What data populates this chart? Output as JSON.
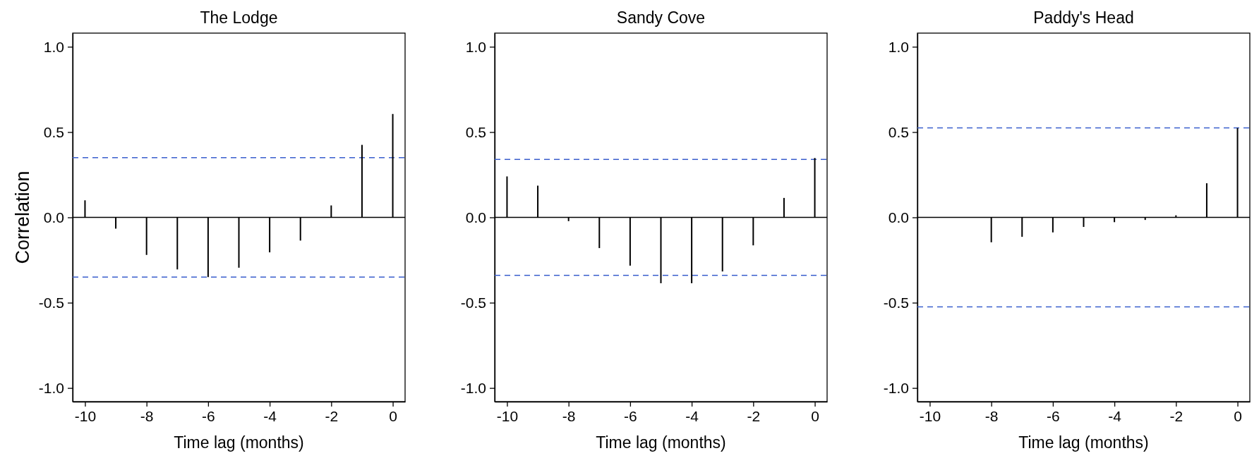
{
  "chart_data": [
    {
      "type": "bar",
      "title": "The Lodge",
      "xlabel": "Time lag (months)",
      "ylabel": "Correlation",
      "x": [
        -10,
        -9,
        -8,
        -7,
        -6,
        -5,
        -4,
        -3,
        -2,
        -1,
        0
      ],
      "series": [
        {
          "color": "#000000",
          "values": [
            0.1,
            -0.066,
            -0.22,
            -0.305,
            -0.35,
            -0.295,
            -0.205,
            -0.136,
            0.07,
            0.425,
            0.606
          ]
        }
      ],
      "xlim": [
        -10.4,
        0.4
      ],
      "xticks": [
        -10,
        -8,
        -6,
        -4,
        -2,
        0
      ],
      "ylim": [
        -1.08,
        1.08
      ],
      "yticks": [
        {
          "value": -1,
          "label": "-1.0"
        },
        {
          "value": -0.5,
          "label": "-0.5"
        },
        {
          "value": 0,
          "label": "0.0"
        },
        {
          "value": 0.5,
          "label": "0.5"
        },
        {
          "value": 1,
          "label": "1.0"
        }
      ],
      "ref_lines": [
        {
          "axis": "y",
          "value": 0,
          "color": "#000000",
          "line_style": "solid"
        },
        {
          "axis": "y",
          "value": 0.35,
          "color": "#3a5fcd",
          "line_style": "dashed"
        },
        {
          "axis": "y",
          "value": -0.35,
          "color": "#3a5fcd",
          "line_style": "dashed"
        }
      ]
    },
    {
      "type": "bar",
      "title": "Sandy Cove",
      "xlabel": "Time lag (months)",
      "x": [
        -10,
        -9,
        -8,
        -7,
        -6,
        -5,
        -4,
        -3,
        -2,
        -1,
        0
      ],
      "series": [
        {
          "color": "#000000",
          "values": [
            0.24,
            0.186,
            -0.022,
            -0.18,
            -0.283,
            -0.386,
            -0.386,
            -0.317,
            -0.164,
            0.114,
            0.348
          ]
        }
      ],
      "xlim": [
        -10.4,
        0.4
      ],
      "xticks": [
        -10,
        -8,
        -6,
        -4,
        -2,
        0
      ],
      "ylim": [
        -1.08,
        1.08
      ],
      "yticks": [
        {
          "value": -1,
          "label": "-1.0"
        },
        {
          "value": -0.5,
          "label": "-0.5"
        },
        {
          "value": 0,
          "label": "0.0"
        },
        {
          "value": 0.5,
          "label": "0.5"
        },
        {
          "value": 1,
          "label": "1.0"
        }
      ],
      "ref_lines": [
        {
          "axis": "y",
          "value": 0,
          "color": "#000000",
          "line_style": "solid"
        },
        {
          "axis": "y",
          "value": 0.34,
          "color": "#3a5fcd",
          "line_style": "dashed"
        },
        {
          "axis": "y",
          "value": -0.34,
          "color": "#3a5fcd",
          "line_style": "dashed"
        }
      ]
    },
    {
      "type": "bar",
      "title": "Paddy's Head",
      "xlabel": "Time lag (months)",
      "x": [
        -8,
        -7,
        -6,
        -5,
        -4,
        -3,
        -2,
        -1,
        0
      ],
      "series": [
        {
          "color": "#000000",
          "values": [
            -0.146,
            -0.114,
            -0.088,
            -0.056,
            -0.028,
            -0.015,
            0.012,
            0.2,
            0.524
          ]
        }
      ],
      "xlim": [
        -10.4,
        0.4
      ],
      "xticks": [
        -10,
        -8,
        -6,
        -4,
        -2,
        0
      ],
      "ylim": [
        -1.08,
        1.08
      ],
      "yticks": [
        {
          "value": -1,
          "label": "-1.0"
        },
        {
          "value": -0.5,
          "label": "-0.5"
        },
        {
          "value": 0,
          "label": "0.0"
        },
        {
          "value": 0.5,
          "label": "0.5"
        },
        {
          "value": 1,
          "label": "1.0"
        }
      ],
      "ref_lines": [
        {
          "axis": "y",
          "value": 0,
          "color": "#000000",
          "line_style": "solid"
        },
        {
          "axis": "y",
          "value": 0.524,
          "color": "#3a5fcd",
          "line_style": "dashed"
        },
        {
          "axis": "y",
          "value": -0.524,
          "color": "#3a5fcd",
          "line_style": "dashed"
        }
      ]
    }
  ]
}
